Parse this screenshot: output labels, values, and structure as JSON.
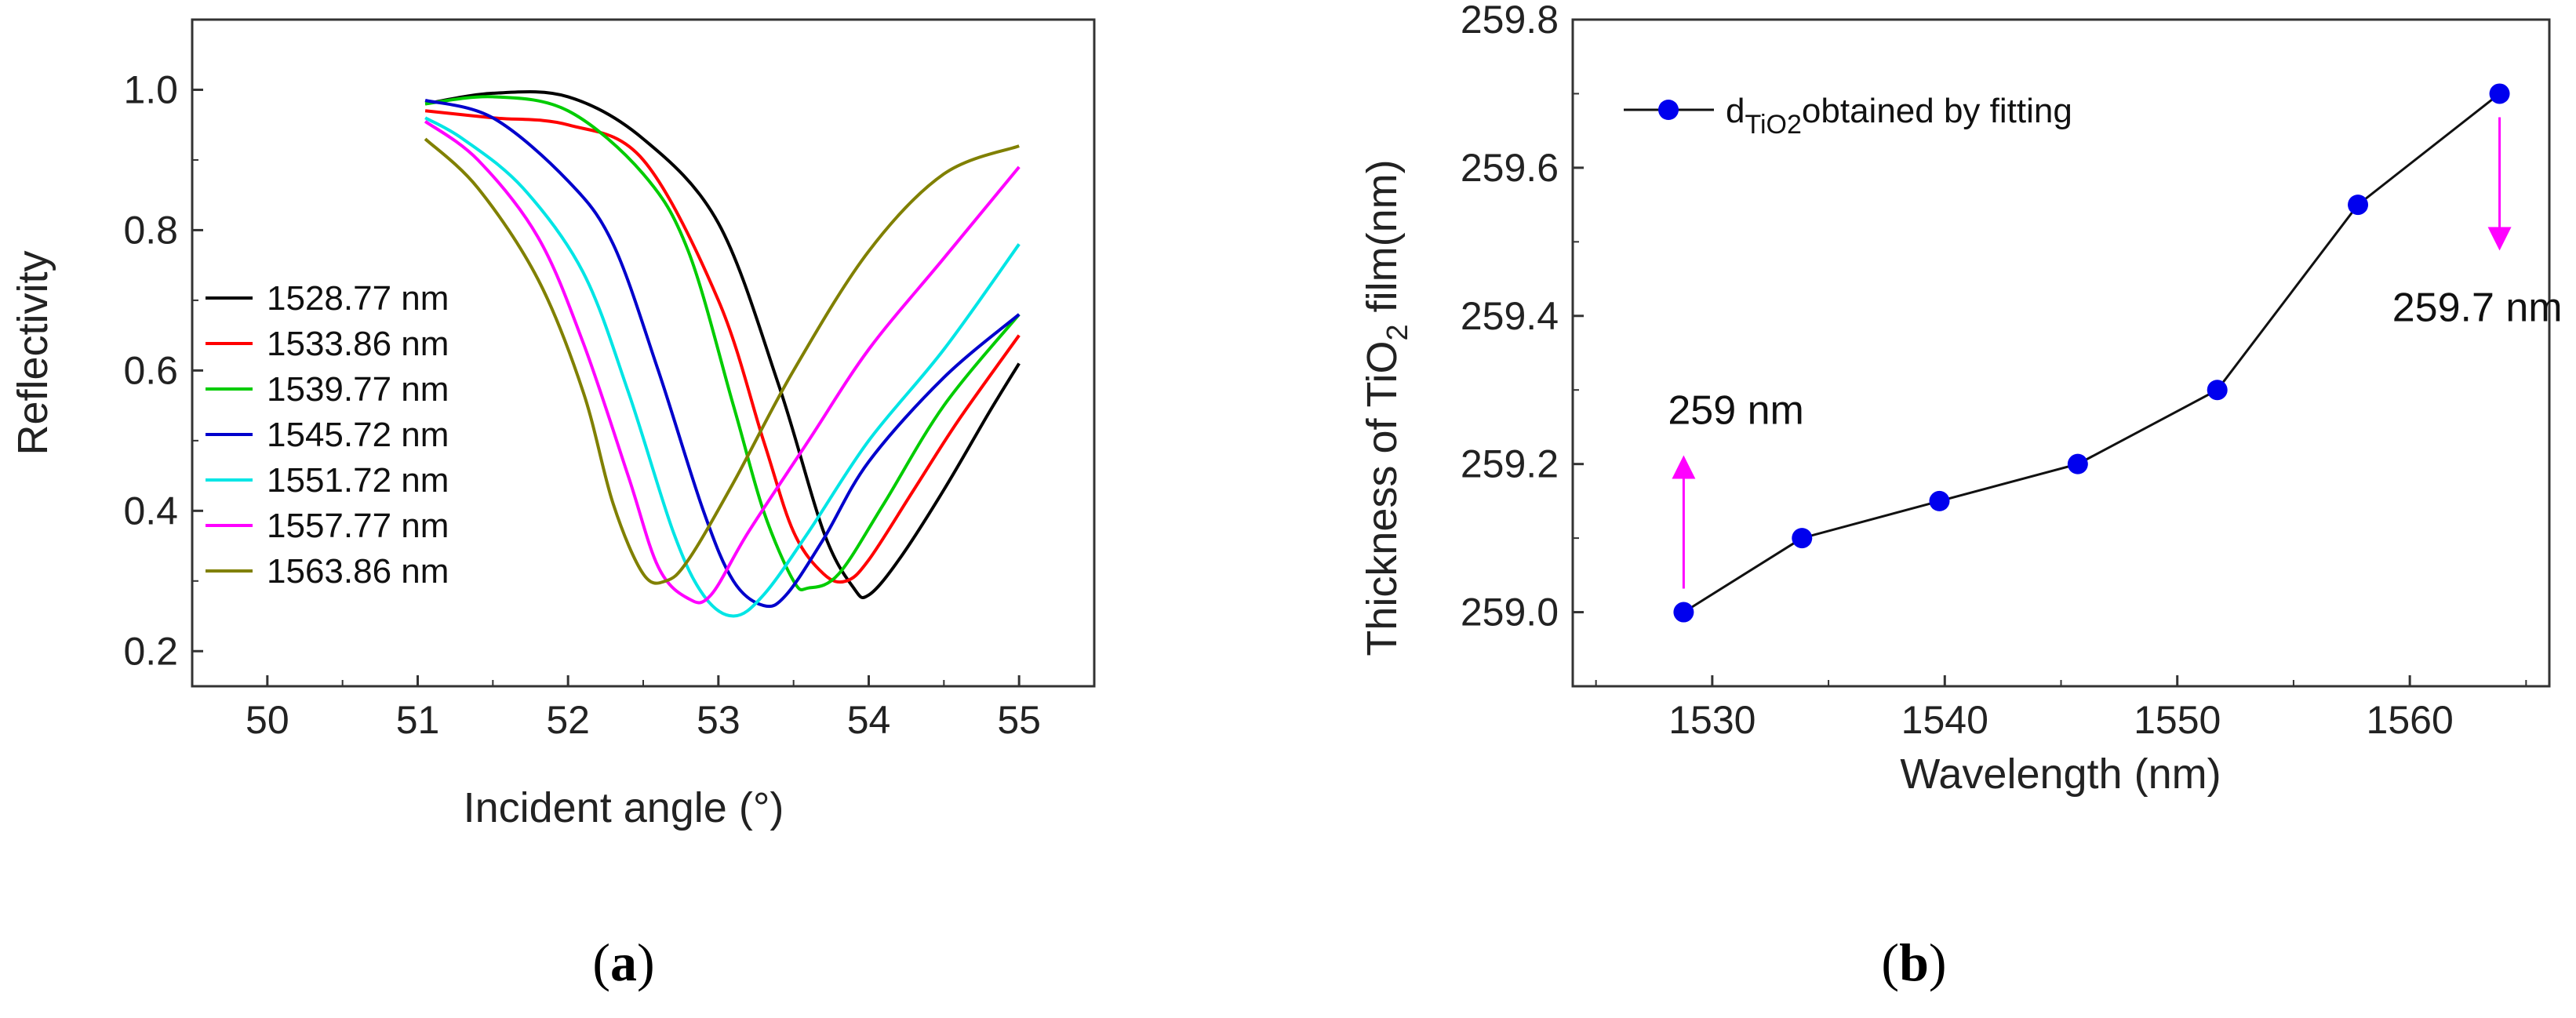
{
  "chart_data": [
    {
      "panel": "(a)",
      "type": "line",
      "xlabel": "Incident angle (°)",
      "ylabel": "Reflectivity",
      "xlim": [
        49.5,
        55.5
      ],
      "ylim": [
        0.15,
        1.1
      ],
      "xticks": [
        "50",
        "51",
        "52",
        "53",
        "54",
        "55"
      ],
      "yticks": [
        "0.2",
        "0.4",
        "0.6",
        "0.8",
        "1.0"
      ],
      "series": [
        {
          "name": "1528.77 nm",
          "color": "#000000",
          "x": [
            51.05,
            51.5,
            52.0,
            52.5,
            53.0,
            53.4,
            53.7,
            53.9,
            54.0,
            54.2,
            54.5,
            54.8,
            55.0
          ],
          "y": [
            0.98,
            0.995,
            0.99,
            0.93,
            0.81,
            0.58,
            0.37,
            0.29,
            0.28,
            0.33,
            0.43,
            0.54,
            0.61
          ]
        },
        {
          "name": "1533.86 nm",
          "color": "#ff0000",
          "x": [
            51.05,
            51.5,
            52.0,
            52.5,
            53.0,
            53.3,
            53.5,
            53.7,
            53.85,
            54.0,
            54.3,
            54.6,
            55.0
          ],
          "y": [
            0.97,
            0.96,
            0.95,
            0.9,
            0.7,
            0.5,
            0.37,
            0.31,
            0.3,
            0.33,
            0.43,
            0.53,
            0.65
          ]
        },
        {
          "name": "1539.77 nm",
          "color": "#00cc00",
          "x": [
            51.05,
            51.5,
            52.0,
            52.5,
            52.8,
            53.1,
            53.3,
            53.5,
            53.6,
            53.8,
            54.1,
            54.5,
            55.0
          ],
          "y": [
            0.98,
            0.99,
            0.97,
            0.88,
            0.77,
            0.55,
            0.4,
            0.3,
            0.29,
            0.31,
            0.41,
            0.55,
            0.68
          ]
        },
        {
          "name": "1545.72 nm",
          "color": "#0000cc",
          "x": [
            51.05,
            51.5,
            52.0,
            52.3,
            52.6,
            52.9,
            53.1,
            53.3,
            53.45,
            53.7,
            54.0,
            54.5,
            55.0
          ],
          "y": [
            0.985,
            0.96,
            0.87,
            0.78,
            0.6,
            0.4,
            0.3,
            0.265,
            0.28,
            0.36,
            0.47,
            0.59,
            0.68
          ]
        },
        {
          "name": "1551.72 nm",
          "color": "#00e5e5",
          "x": [
            51.05,
            51.3,
            51.7,
            52.1,
            52.4,
            52.7,
            52.9,
            53.1,
            53.3,
            53.6,
            54.0,
            54.5,
            55.0
          ],
          "y": [
            0.96,
            0.93,
            0.86,
            0.74,
            0.57,
            0.37,
            0.28,
            0.25,
            0.28,
            0.37,
            0.5,
            0.63,
            0.78
          ]
        },
        {
          "name": "1557.77 nm",
          "color": "#ff00ff",
          "x": [
            51.05,
            51.4,
            51.8,
            52.1,
            52.4,
            52.6,
            52.8,
            52.95,
            53.2,
            53.6,
            54.0,
            54.5,
            55.0
          ],
          "y": [
            0.955,
            0.9,
            0.79,
            0.64,
            0.45,
            0.32,
            0.275,
            0.28,
            0.37,
            0.5,
            0.63,
            0.76,
            0.89
          ]
        },
        {
          "name": "1563.86 nm",
          "color": "#808000",
          "x": [
            51.05,
            51.4,
            51.8,
            52.1,
            52.3,
            52.5,
            52.65,
            52.8,
            53.1,
            53.5,
            54.0,
            54.5,
            55.0
          ],
          "y": [
            0.93,
            0.86,
            0.73,
            0.57,
            0.41,
            0.31,
            0.3,
            0.33,
            0.44,
            0.6,
            0.77,
            0.88,
            0.92
          ]
        }
      ]
    },
    {
      "panel": "(b)",
      "type": "line",
      "xlabel": "Wavelength (nm)",
      "ylabel_main": "Thickness of TiO",
      "ylabel_sub": "2",
      "ylabel_tail": " film(nm)",
      "xlim": [
        1524,
        1566
      ],
      "ylim": [
        258.9,
        259.8
      ],
      "xticks": [
        "1530",
        "1540",
        "1550",
        "1560"
      ],
      "yticks": [
        "259.0",
        "259.2",
        "259.4",
        "259.6",
        "259.8"
      ],
      "series": [
        {
          "name_main": "d",
          "name_sub": "TiO2",
          "name_tail": "obtained by fitting",
          "color": "#0000ee",
          "x": [
            1528.77,
            1533.86,
            1539.77,
            1545.72,
            1551.72,
            1557.77,
            1563.86
          ],
          "y": [
            259.0,
            259.1,
            259.15,
            259.2,
            259.3,
            259.55,
            259.7
          ]
        }
      ],
      "annotations": [
        {
          "text": "259 nm",
          "at_x": 1528.77,
          "at_y": 259.0,
          "arrow_color": "#ff00ff"
        },
        {
          "text": "259.7 nm",
          "at_x": 1563.86,
          "at_y": 259.7,
          "arrow_color": "#ff00ff"
        }
      ]
    }
  ],
  "captions": {
    "a_open": "(",
    "a_letter": "a",
    "a_close": ")",
    "b_open": "(",
    "b_letter": "b",
    "b_close": ")"
  }
}
